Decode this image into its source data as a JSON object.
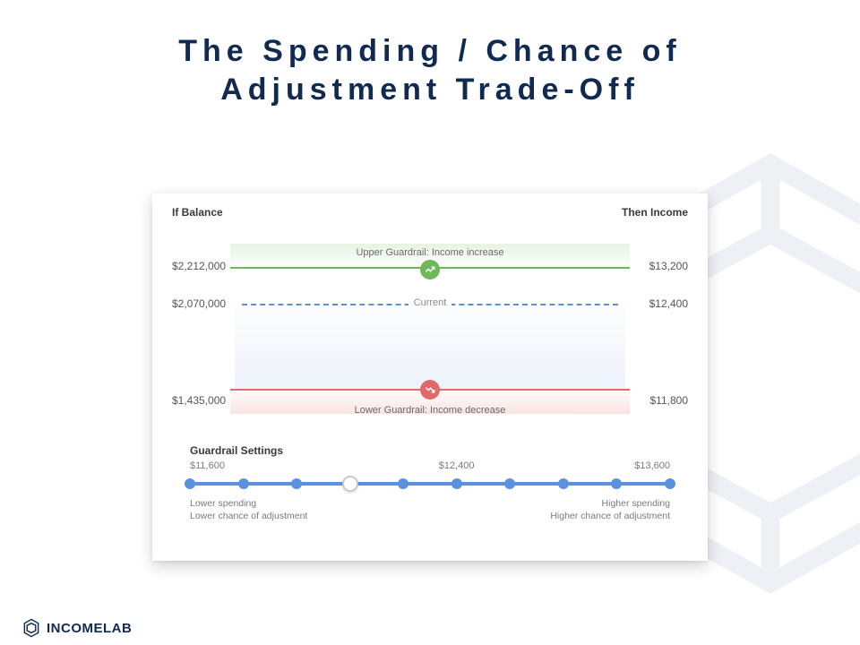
{
  "title_line1": "The Spending / Chance of",
  "title_line2": "Adjustment Trade-Off",
  "colors": {
    "title": "#102a52",
    "upper_green": "#6db95a",
    "lower_red": "#e06a6a",
    "dash_blue": "#5b8fd6",
    "slider_blue": "#5a92e0",
    "text_muted": "#6a6a6a"
  },
  "card": {
    "header_left": "If Balance",
    "header_right": "Then Income",
    "upper": {
      "label": "Upper Guardrail: Income increase",
      "balance": "$2,212,000",
      "income": "$13,200"
    },
    "current": {
      "label": "Current",
      "balance": "$2,070,000",
      "income": "$12,400"
    },
    "lower": {
      "label": "Lower Guardrail: Income decrease",
      "balance": "$1,435,000",
      "income": "$11,800"
    }
  },
  "settings": {
    "title": "Guardrail Settings",
    "min_label": "$11,600",
    "current_label": "$12,400",
    "max_label": "$13,600",
    "ticks": 10,
    "handle_index": 3,
    "caption_left_1": "Lower spending",
    "caption_left_2": "Lower chance of adjustment",
    "caption_right_1": "Higher spending",
    "caption_right_2": "Higher chance of adjustment"
  },
  "brand": {
    "name": "INCOMELAB"
  }
}
